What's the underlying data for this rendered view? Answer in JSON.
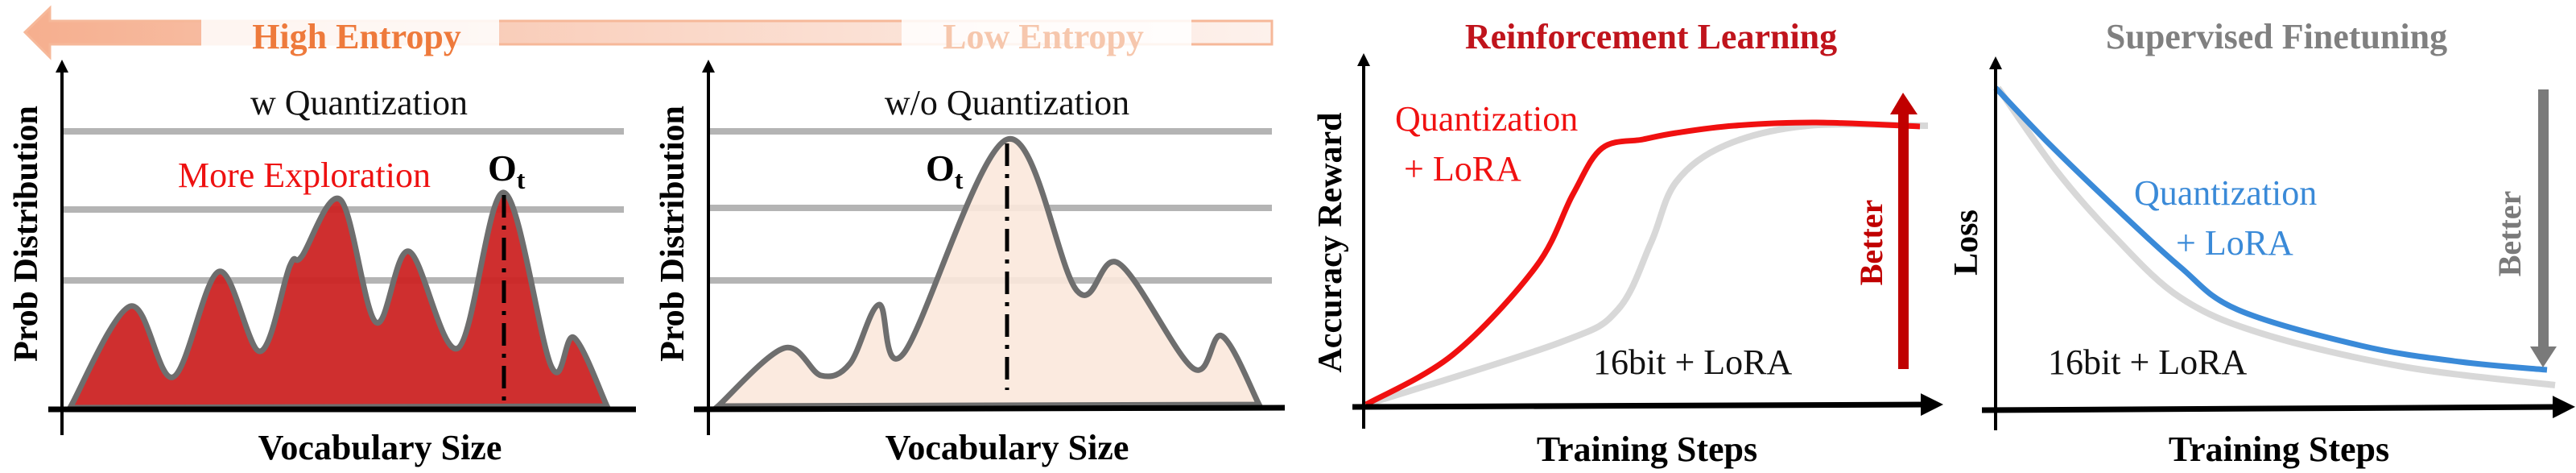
{
  "entropy_arrow": {
    "high_label": "High Entropy",
    "low_label": "Low Entropy",
    "color": "#ee7a3c"
  },
  "panel_with_quant": {
    "title": "w Quantization",
    "annotation": "More Exploration",
    "token_label": "O",
    "token_subscript": "t",
    "y_label": "Prob Distribution",
    "x_label": "Vocabulary Size",
    "fill_color": "#cc2424",
    "annotation_color": "#ee1111"
  },
  "panel_without_quant": {
    "title": "w/o Quantization",
    "token_label": "O",
    "token_subscript": "t",
    "y_label": "Prob Distribution",
    "x_label": "Vocabulary Size",
    "fill_color": "#fbe8dc"
  },
  "panel_rl": {
    "title": "Reinforcement Learning",
    "title_color": "#c0141c",
    "y_label": "Accuracy Reward",
    "x_label": "Training Steps",
    "quant_label_line1": "Quantization",
    "quant_label_line2": "+ LoRA",
    "baseline_label": "16bit + LoRA",
    "better_label": "Better",
    "quant_color": "#f01010",
    "baseline_color": "#d8d8d8",
    "better_color": "#c00000"
  },
  "panel_sft": {
    "title": "Supervised Finetuning",
    "title_color": "#808080",
    "y_label": "Loss",
    "x_label": "Training Steps",
    "quant_label_line1": "Quantization",
    "quant_label_line2": "+ LoRA",
    "baseline_label": "16bit + LoRA",
    "better_label": "Better",
    "quant_color": "#3a8ad8",
    "baseline_color": "#d8d8d8",
    "better_color": "#7a7a7a"
  }
}
